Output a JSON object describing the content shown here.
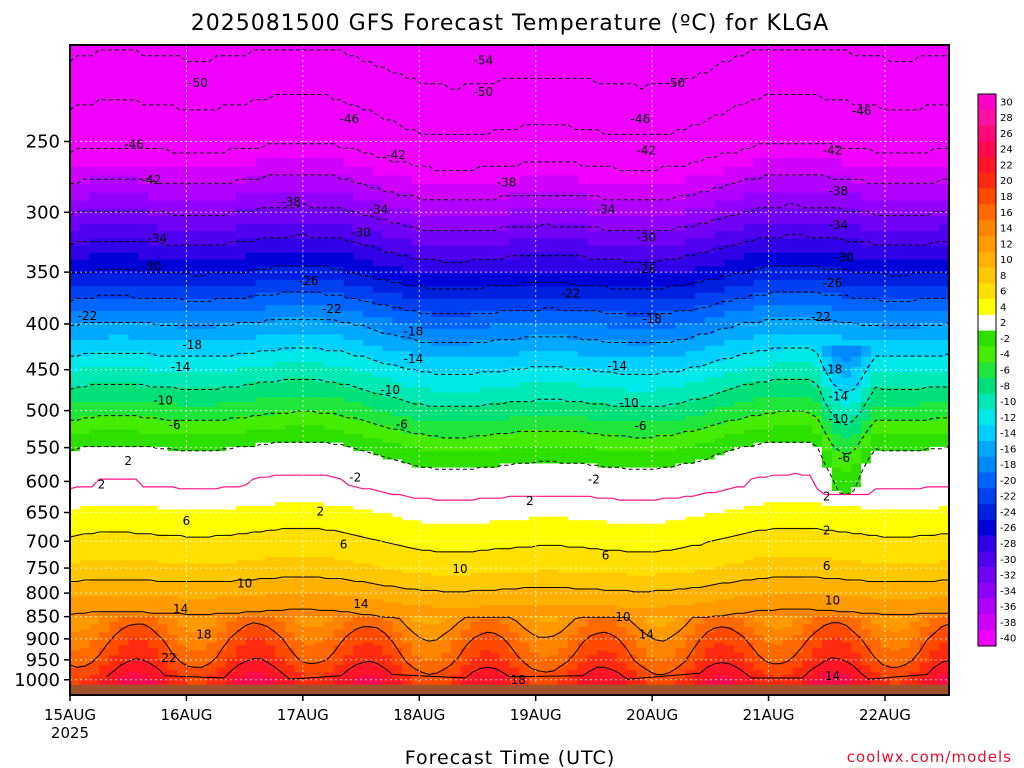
{
  "chart_data": {
    "type": "heatmap",
    "title": "2025081500 GFS Forecast Temperature (ºC) for KLGA",
    "xlabel": "Forecast Time (UTC)",
    "ylabel": "",
    "credit": "coolwx.com/models",
    "x_ticks": [
      "15AUG\n2025",
      "16AUG",
      "17AUG",
      "18AUG",
      "19AUG",
      "20AUG",
      "21AUG",
      "22AUG"
    ],
    "x_tick_labels": [
      "15AUG",
      "16AUG",
      "17AUG",
      "18AUG",
      "19AUG",
      "20AUG",
      "21AUG",
      "22AUG"
    ],
    "x_year_label": "2025",
    "xlim": [
      0,
      7.55
    ],
    "y_scale": "log-pressure",
    "y_inverted": true,
    "ylim": [
      1040,
      195
    ],
    "y_ticks": [
      250,
      300,
      350,
      400,
      450,
      500,
      550,
      600,
      650,
      700,
      750,
      800,
      850,
      900,
      950,
      1000
    ],
    "grid": true,
    "colorbar_levels": [
      30,
      28,
      26,
      24,
      22,
      20,
      18,
      16,
      14,
      12,
      10,
      8,
      6,
      4,
      2,
      -2,
      -4,
      -6,
      -8,
      -10,
      -12,
      -14,
      -16,
      -18,
      -20,
      -22,
      -24,
      -26,
      -28,
      -30,
      -32,
      -34,
      -36,
      -38,
      -40
    ],
    "colorbar_colors": [
      "#ff00c8",
      "#ff10a0",
      "#ff0a78",
      "#ff0a4c",
      "#ff1428",
      "#ff2a10",
      "#ff4a00",
      "#ff6a00",
      "#ff8400",
      "#ff9a00",
      "#ffb000",
      "#ffc800",
      "#ffe000",
      "#ffff00",
      "#ffffff",
      "#2ee000",
      "#46ec00",
      "#20e63c",
      "#00e078",
      "#00e8b4",
      "#00e8e8",
      "#00d0ff",
      "#00a8ff",
      "#0088ff",
      "#0064ff",
      "#0040f0",
      "#0020e0",
      "#0000d8",
      "#3000e8",
      "#5000f0",
      "#7000f8",
      "#9000ff",
      "#b000ff",
      "#d000ff",
      "#f000ff"
    ],
    "temperature_profile_day0": [
      {
        "p": 1000,
        "t": 22
      },
      {
        "p": 950,
        "t": 19
      },
      {
        "p": 900,
        "t": 17
      },
      {
        "p": 850,
        "t": 14
      },
      {
        "p": 800,
        "t": 11
      },
      {
        "p": 750,
        "t": 8
      },
      {
        "p": 700,
        "t": 6
      },
      {
        "p": 650,
        "t": 4
      },
      {
        "p": 600,
        "t": 1
      },
      {
        "p": 550,
        "t": -3
      },
      {
        "p": 500,
        "t": -8
      },
      {
        "p": 450,
        "t": -13
      },
      {
        "p": 400,
        "t": -19
      },
      {
        "p": 350,
        "t": -27
      },
      {
        "p": 300,
        "t": -35
      },
      {
        "p": 250,
        "t": -44
      },
      {
        "p": 200,
        "t": -51
      }
    ],
    "contour_labels": [
      {
        "text": "-54",
        "x": 3.55,
        "p": 203
      },
      {
        "text": "-50",
        "x": 1.1,
        "p": 215
      },
      {
        "text": "-50",
        "x": 3.55,
        "p": 220
      },
      {
        "text": "-50",
        "x": 5.2,
        "p": 215
      },
      {
        "text": "-46",
        "x": 2.4,
        "p": 236
      },
      {
        "text": "-46",
        "x": 4.9,
        "p": 236
      },
      {
        "text": "-46",
        "x": 6.8,
        "p": 231
      },
      {
        "text": "-46",
        "x": 0.55,
        "p": 252
      },
      {
        "text": "-42",
        "x": 0.7,
        "p": 276
      },
      {
        "text": "-42",
        "x": 2.8,
        "p": 259
      },
      {
        "text": "-42",
        "x": 4.95,
        "p": 256
      },
      {
        "text": "-42",
        "x": 6.55,
        "p": 256
      },
      {
        "text": "-38",
        "x": 1.9,
        "p": 292
      },
      {
        "text": "-38",
        "x": 3.75,
        "p": 278
      },
      {
        "text": "-38",
        "x": 6.6,
        "p": 284
      },
      {
        "text": "-34",
        "x": 0.75,
        "p": 321
      },
      {
        "text": "-34",
        "x": 2.65,
        "p": 298
      },
      {
        "text": "-34",
        "x": 4.6,
        "p": 298
      },
      {
        "text": "-34",
        "x": 6.6,
        "p": 310
      },
      {
        "text": "-30",
        "x": 0.7,
        "p": 345
      },
      {
        "text": "-30",
        "x": 2.5,
        "p": 316
      },
      {
        "text": "-30",
        "x": 4.95,
        "p": 320
      },
      {
        "text": "-30",
        "x": 6.65,
        "p": 337
      },
      {
        "text": "-26",
        "x": 2.05,
        "p": 358
      },
      {
        "text": "-26",
        "x": 4.95,
        "p": 347
      },
      {
        "text": "-26",
        "x": 6.55,
        "p": 360
      },
      {
        "text": "-22",
        "x": 0.15,
        "p": 392
      },
      {
        "text": "-22",
        "x": 2.25,
        "p": 385
      },
      {
        "text": "-22",
        "x": 4.3,
        "p": 370
      },
      {
        "text": "-22",
        "x": 6.45,
        "p": 393
      },
      {
        "text": "-18",
        "x": 1.05,
        "p": 422
      },
      {
        "text": "-18",
        "x": 2.95,
        "p": 408
      },
      {
        "text": "-18",
        "x": 5.0,
        "p": 395
      },
      {
        "text": "-18",
        "x": 6.55,
        "p": 450
      },
      {
        "text": "-14",
        "x": 0.95,
        "p": 447
      },
      {
        "text": "-14",
        "x": 2.95,
        "p": 438
      },
      {
        "text": "-14",
        "x": 4.7,
        "p": 446
      },
      {
        "text": "-14",
        "x": 6.6,
        "p": 482
      },
      {
        "text": "-10",
        "x": 0.8,
        "p": 487
      },
      {
        "text": "-10",
        "x": 2.75,
        "p": 474
      },
      {
        "text": "-10",
        "x": 4.8,
        "p": 490
      },
      {
        "text": "-10",
        "x": 6.6,
        "p": 511
      },
      {
        "text": "-6",
        "x": 0.9,
        "p": 519
      },
      {
        "text": "-6",
        "x": 2.85,
        "p": 518
      },
      {
        "text": "-6",
        "x": 4.9,
        "p": 520
      },
      {
        "text": "-6",
        "x": 6.65,
        "p": 565
      },
      {
        "text": "-2",
        "x": 2.45,
        "p": 594
      },
      {
        "text": "-2",
        "x": 4.5,
        "p": 597
      },
      {
        "text": "2",
        "x": 0.5,
        "p": 569
      },
      {
        "text": "2",
        "x": 0.27,
        "p": 605
      },
      {
        "text": "2",
        "x": 2.15,
        "p": 648
      },
      {
        "text": "2",
        "x": 3.95,
        "p": 631
      },
      {
        "text": "2",
        "x": 6.5,
        "p": 624
      },
      {
        "text": "2",
        "x": 6.5,
        "p": 681
      },
      {
        "text": "6",
        "x": 1.0,
        "p": 664
      },
      {
        "text": "6",
        "x": 2.35,
        "p": 706
      },
      {
        "text": "6",
        "x": 4.6,
        "p": 726
      },
      {
        "text": "6",
        "x": 6.5,
        "p": 746
      },
      {
        "text": "10",
        "x": 1.5,
        "p": 780
      },
      {
        "text": "10",
        "x": 3.35,
        "p": 752
      },
      {
        "text": "10",
        "x": 4.75,
        "p": 851
      },
      {
        "text": "10",
        "x": 6.55,
        "p": 815
      },
      {
        "text": "14",
        "x": 0.95,
        "p": 833
      },
      {
        "text": "14",
        "x": 2.5,
        "p": 823
      },
      {
        "text": "14",
        "x": 4.95,
        "p": 890
      },
      {
        "text": "14",
        "x": 6.55,
        "p": 990
      },
      {
        "text": "18",
        "x": 1.15,
        "p": 890
      },
      {
        "text": "18",
        "x": 3.85,
        "p": 1000
      },
      {
        "text": "22",
        "x": 0.85,
        "p": 945
      }
    ]
  }
}
